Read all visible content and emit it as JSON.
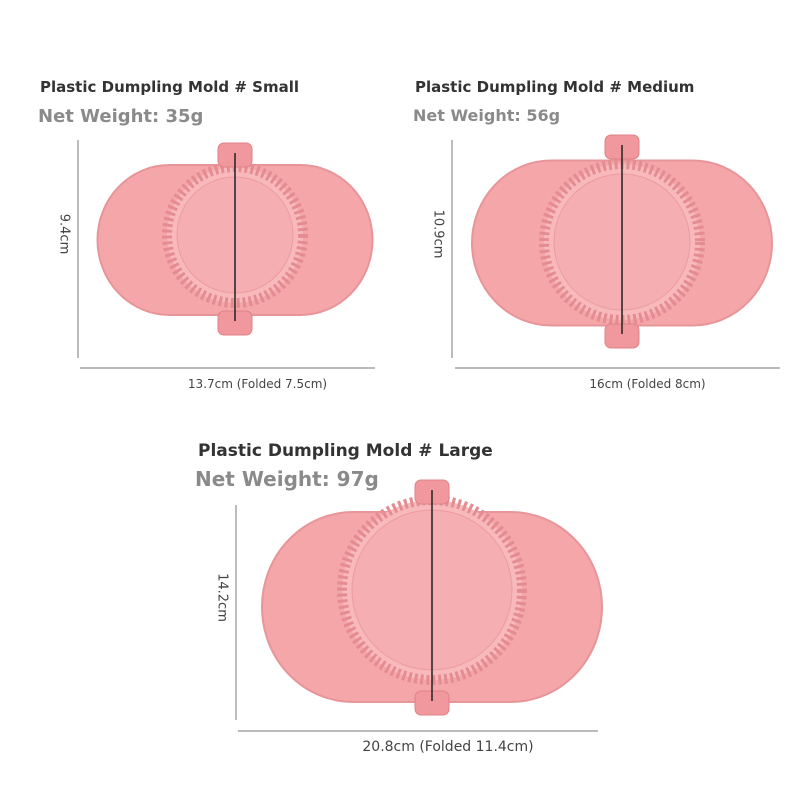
{
  "products": [
    {
      "title": "Plastic Dumpling Mold # Small",
      "weight": "Net Weight: 35g",
      "height": "9.4cm",
      "width": "13.7cm (Folded 7.5cm)"
    },
    {
      "title": "Plastic Dumpling Mold # Medium",
      "weight": "Net Weight: 56g",
      "height": "10.9cm",
      "width": "16cm (Folded 8cm)"
    },
    {
      "title": "Plastic Dumpling Mold # Large",
      "weight": "Net Weight: 97g",
      "height": "14.2cm",
      "width": "20.8cm (Folded 11.4cm)"
    }
  ]
}
